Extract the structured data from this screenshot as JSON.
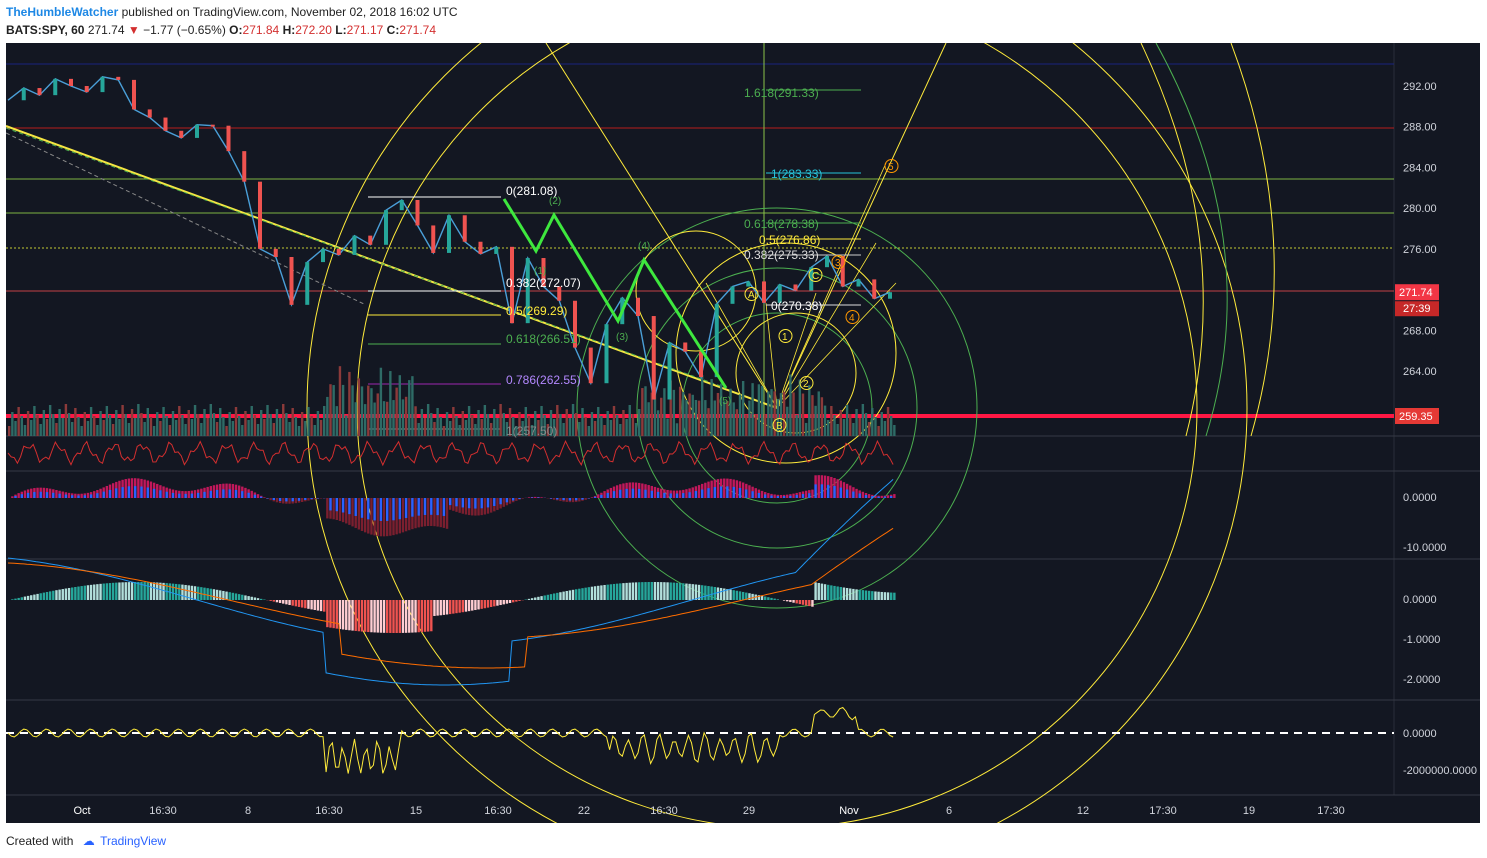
{
  "header": {
    "author": "TheHumbleWatcher",
    "published_text": "published on TradingView.com, November 02, 2018 16:02 UTC"
  },
  "symbol_line": {
    "symbol": "BATS:SPY, 60",
    "last": "271.74",
    "change": "−1.77 (−0.65%)",
    "o_label": "O:",
    "o": "271.84",
    "h_label": "H:",
    "h": "272.20",
    "l_label": "L:",
    "l": "271.17",
    "c_label": "C:",
    "c": "271.74"
  },
  "footer": {
    "created_with": "Created with",
    "brand": "TradingView"
  },
  "colors": {
    "background": "#131722",
    "up": "#26a69a",
    "down": "#ef5350",
    "fib_green": "#4caf50",
    "fib_yellow": "#ffeb3b",
    "line_yellow": "#f5e642",
    "price_tag": "#f23645",
    "blue_line": "#1a237e"
  },
  "chart_data": {
    "type": "line",
    "symbol": "BATS:SPY",
    "interval": "60",
    "x_ticks": [
      "Oct",
      "16:30",
      "8",
      "16:30",
      "15",
      "16:30",
      "22",
      "16:30",
      "29",
      "Nov",
      "6",
      "12",
      "17:30",
      "19",
      "17:30"
    ],
    "y_ticks": [
      "292.00",
      "288.00",
      "284.00",
      "280.00",
      "276.00",
      "272.00",
      "268.00",
      "264.00"
    ],
    "ylim": [
      258,
      296
    ],
    "price_series": {
      "name": "SPY",
      "x": [
        0,
        5,
        10,
        15,
        20,
        25,
        30,
        35,
        40,
        45,
        50,
        55,
        60,
        65,
        70,
        75,
        80,
        85,
        90,
        95,
        100,
        105,
        110,
        115,
        120,
        125,
        130,
        135,
        140,
        145,
        150,
        155,
        160,
        165,
        170,
        175,
        180,
        185,
        190,
        195,
        200,
        205,
        210,
        215,
        220,
        225,
        230,
        235,
        240,
        245,
        250,
        255,
        260,
        265,
        270,
        275,
        280
      ],
      "y": [
        290.6,
        291.8,
        291.1,
        292.7,
        292.0,
        291.4,
        292.9,
        292.6,
        289.7,
        288.9,
        287.6,
        286.9,
        288.2,
        288.1,
        285.6,
        282.6,
        276.0,
        275.2,
        270.5,
        274.7,
        276.0,
        275.4,
        277.3,
        276.4,
        279.8,
        280.8,
        278.3,
        275.6,
        279.3,
        276.7,
        275.5,
        276.2,
        268.7,
        275.1,
        272.3,
        270.9,
        266.3,
        262.8,
        268.6,
        271.2,
        269.4,
        261.2,
        266.8,
        265.9,
        263.4,
        270.6,
        272.3,
        272.8,
        270.7,
        272.5,
        271.9,
        274.2,
        275.3,
        272.3,
        273.0,
        271.1,
        271.74
      ]
    },
    "current_price": "271.74",
    "countdown": "27:39",
    "level_tag": "259.35",
    "fib_left": [
      {
        "label": "0(281.08)"
      },
      {
        "label": "0.382(272.07)"
      },
      {
        "label": "0.5(269.29)"
      },
      {
        "label": "0.618(266.51)"
      },
      {
        "label": "0.786(262.55)"
      },
      {
        "label": "1(257.50)"
      }
    ],
    "fib_right": [
      {
        "label": "1.618(291.33)"
      },
      {
        "label": "1(283.33)"
      },
      {
        "label": "0.618(278.38)"
      },
      {
        "label": "0.5(276.86)"
      },
      {
        "label": "0.382(275.33)"
      },
      {
        "label": "0(270.38)"
      }
    ],
    "wave_labels": [
      "(1)",
      "(2)",
      "(3)",
      "(4)",
      "(5)",
      "A",
      "B",
      "C",
      "1",
      "2",
      "3",
      "4",
      "5"
    ],
    "indicators": [
      {
        "name": "rsi-like",
        "y_ticks": []
      },
      {
        "name": "histogram",
        "y_ticks": [
          "0.0000",
          "-10.0000"
        ]
      },
      {
        "name": "macd",
        "y_ticks": [
          "0.0000",
          "-1.0000",
          "-2.0000"
        ]
      },
      {
        "name": "volume-oscillator",
        "y_ticks": [
          "0.0000",
          "-2000000.0000"
        ]
      }
    ]
  }
}
